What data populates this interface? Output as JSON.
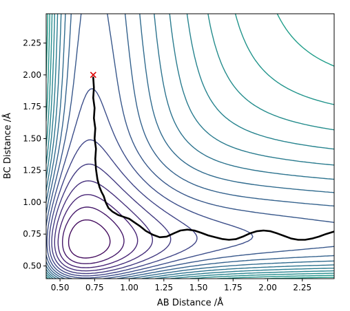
{
  "chart_data": {
    "type": "contour",
    "title": "",
    "xlabel": "AB Distance /Å",
    "ylabel": "BC Distance /Å",
    "xlim": [
      0.4,
      2.48
    ],
    "ylim": [
      0.4,
      2.48
    ],
    "xticks": [
      "0.50",
      "0.75",
      "1.00",
      "1.25",
      "1.50",
      "1.75",
      "2.00",
      "2.25"
    ],
    "yticks": [
      "0.50",
      "0.75",
      "1.00",
      "1.25",
      "1.50",
      "1.75",
      "2.00",
      "2.25"
    ],
    "grid": false,
    "colormap": "viridis",
    "contour_count": 30,
    "start_marker": {
      "x": 0.74,
      "y": 2.0,
      "symbol": "x",
      "color": "#dd0000"
    },
    "trajectory": {
      "color": "#000000",
      "points": [
        [
          0.74,
          1.98
        ],
        [
          0.745,
          1.9
        ],
        [
          0.74,
          1.82
        ],
        [
          0.75,
          1.74
        ],
        [
          0.745,
          1.66
        ],
        [
          0.755,
          1.58
        ],
        [
          0.75,
          1.5
        ],
        [
          0.76,
          1.42
        ],
        [
          0.755,
          1.34
        ],
        [
          0.76,
          1.26
        ],
        [
          0.77,
          1.18
        ],
        [
          0.785,
          1.12
        ],
        [
          0.8,
          1.08
        ],
        [
          0.815,
          1.05
        ],
        [
          0.83,
          1.0
        ],
        [
          0.85,
          0.955
        ],
        [
          0.88,
          0.925
        ],
        [
          0.92,
          0.9
        ],
        [
          0.96,
          0.885
        ],
        [
          1.0,
          0.87
        ],
        [
          1.04,
          0.84
        ],
        [
          1.08,
          0.81
        ],
        [
          1.12,
          0.775
        ],
        [
          1.17,
          0.745
        ],
        [
          1.22,
          0.725
        ],
        [
          1.27,
          0.73
        ],
        [
          1.32,
          0.755
        ],
        [
          1.37,
          0.778
        ],
        [
          1.42,
          0.785
        ],
        [
          1.47,
          0.778
        ],
        [
          1.52,
          0.76
        ],
        [
          1.57,
          0.74
        ],
        [
          1.62,
          0.725
        ],
        [
          1.67,
          0.712
        ],
        [
          1.72,
          0.705
        ],
        [
          1.77,
          0.71
        ],
        [
          1.82,
          0.73
        ],
        [
          1.87,
          0.755
        ],
        [
          1.92,
          0.772
        ],
        [
          1.97,
          0.778
        ],
        [
          2.02,
          0.772
        ],
        [
          2.07,
          0.755
        ],
        [
          2.12,
          0.735
        ],
        [
          2.17,
          0.715
        ],
        [
          2.22,
          0.705
        ],
        [
          2.27,
          0.705
        ],
        [
          2.32,
          0.715
        ],
        [
          2.37,
          0.73
        ],
        [
          2.42,
          0.75
        ],
        [
          2.48,
          0.77
        ]
      ]
    }
  }
}
